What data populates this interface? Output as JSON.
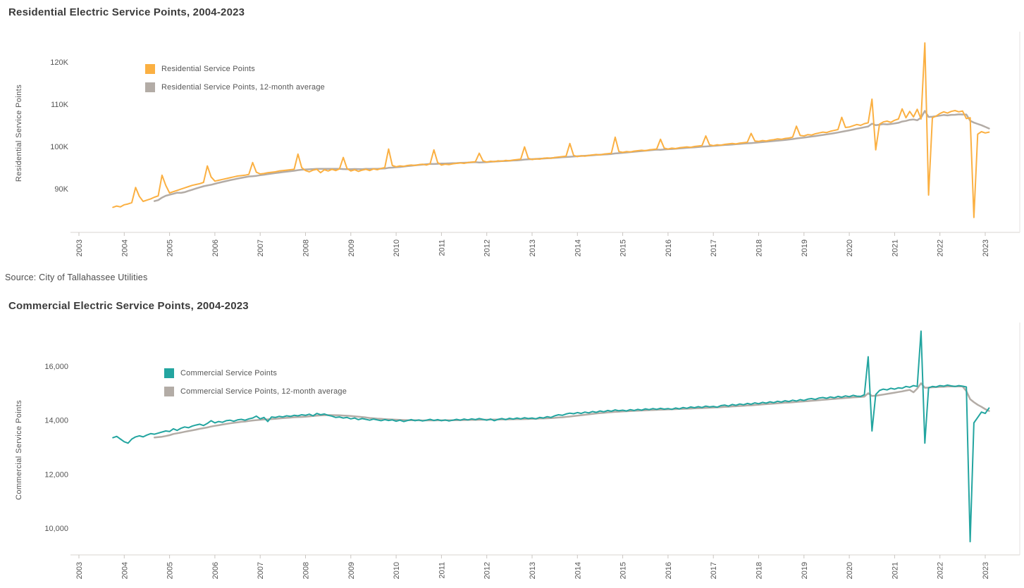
{
  "page": {
    "source_note": "Source: City of Tallahassee Utilities",
    "background": "#ffffff"
  },
  "chart_data": [
    {
      "type": "line",
      "id": "residential",
      "title": "Residential Electric Service Points, 2004-2023",
      "ylabel": "Residential Service Points",
      "legend": [
        {
          "label": "Residential Service Points",
          "color": "#FBB042"
        },
        {
          "label": "Residential Service Points, 12-month average",
          "color": "#B3ACA6"
        }
      ],
      "frequency": "monthly",
      "x_start": {
        "year": 2003,
        "month": 10
      },
      "x_tick_years": [
        2003,
        2004,
        2005,
        2006,
        2007,
        2008,
        2009,
        2010,
        2011,
        2012,
        2013,
        2014,
        2015,
        2016,
        2017,
        2018,
        2019,
        2020,
        2021,
        2022,
        2023
      ],
      "y_ticks": [
        {
          "value": 90000,
          "label": "90K"
        },
        {
          "value": 100000,
          "label": "100K"
        },
        {
          "value": 110000,
          "label": "110K"
        },
        {
          "value": 120000,
          "label": "120K"
        }
      ],
      "average_window": 12,
      "values": [
        85600,
        85900,
        85700,
        86200,
        86400,
        86700,
        90300,
        88200,
        87000,
        87300,
        87600,
        88000,
        88300,
        93200,
        90800,
        89000,
        89300,
        89600,
        89900,
        90200,
        90500,
        90800,
        91000,
        91200,
        91500,
        95400,
        92800,
        91800,
        92000,
        92200,
        92400,
        92600,
        92800,
        93000,
        93100,
        93200,
        93400,
        96200,
        93900,
        93500,
        93600,
        93800,
        93900,
        94000,
        94200,
        94300,
        94400,
        94500,
        94600,
        98200,
        95000,
        94300,
        94000,
        94400,
        94600,
        93800,
        94500,
        94200,
        94600,
        94300,
        94700,
        97400,
        94800,
        94200,
        94500,
        94100,
        94400,
        94600,
        94300,
        94700,
        94500,
        94800,
        95000,
        99400,
        95500,
        95200,
        95400,
        95300,
        95500,
        95600,
        95500,
        95700,
        95800,
        95600,
        95900,
        99200,
        96200,
        95600,
        95800,
        95700,
        95900,
        96000,
        96100,
        96000,
        96200,
        96300,
        96400,
        98400,
        96600,
        96300,
        96500,
        96400,
        96600,
        96500,
        96700,
        96600,
        96800,
        96900,
        97000,
        99900,
        97200,
        96900,
        97100,
        97000,
        97200,
        97300,
        97200,
        97400,
        97500,
        97600,
        97700,
        100700,
        97900,
        97600,
        97800,
        97700,
        97900,
        98000,
        98100,
        98000,
        98200,
        98300,
        98400,
        102200,
        98800,
        98600,
        98800,
        98700,
        98900,
        99000,
        99100,
        99000,
        99200,
        99300,
        99400,
        101700,
        99600,
        99400,
        99600,
        99500,
        99700,
        99800,
        99900,
        99800,
        100000,
        100100,
        100200,
        102500,
        100400,
        100200,
        100400,
        100300,
        100500,
        100600,
        100700,
        100600,
        100800,
        100900,
        101000,
        103100,
        101300,
        101200,
        101400,
        101300,
        101500,
        101600,
        101800,
        101700,
        101900,
        102000,
        102200,
        104800,
        102600,
        102500,
        102800,
        102700,
        103000,
        103200,
        103400,
        103300,
        103600,
        103800,
        104000,
        106900,
        104500,
        104600,
        104900,
        105200,
        105000,
        105400,
        105600,
        111200,
        99200,
        105300,
        105800,
        106000,
        105700,
        106200,
        106500,
        108900,
        106800,
        108300,
        107000,
        108800,
        106500,
        124500,
        88500,
        106800,
        107200,
        107800,
        108200,
        107900,
        108300,
        108500,
        108200,
        108400,
        106600,
        106800,
        83200,
        102900,
        103500,
        103200,
        103400
      ]
    },
    {
      "type": "line",
      "id": "commercial",
      "title": "Commercial Electric Service Points, 2004-2023",
      "ylabel": "Commercial Service Points",
      "legend": [
        {
          "label": "Commercial Service Points",
          "color": "#23A5A0"
        },
        {
          "label": "Commercial Service Points, 12-month average",
          "color": "#B3ACA6"
        }
      ],
      "frequency": "monthly",
      "x_start": {
        "year": 2003,
        "month": 10
      },
      "x_tick_years": [
        2003,
        2004,
        2005,
        2006,
        2007,
        2008,
        2009,
        2010,
        2011,
        2012,
        2013,
        2014,
        2015,
        2016,
        2017,
        2018,
        2019,
        2020,
        2021,
        2022,
        2023
      ],
      "y_ticks": [
        {
          "value": 10000,
          "label": "10,000"
        },
        {
          "value": 12000,
          "label": "12,000"
        },
        {
          "value": 14000,
          "label": "14,000"
        },
        {
          "value": 16000,
          "label": "16,000"
        }
      ],
      "average_window": 12,
      "values": [
        13350,
        13400,
        13300,
        13200,
        13150,
        13300,
        13380,
        13420,
        13380,
        13450,
        13500,
        13480,
        13520,
        13560,
        13600,
        13580,
        13680,
        13620,
        13700,
        13750,
        13720,
        13780,
        13820,
        13850,
        13800,
        13880,
        13980,
        13900,
        13950,
        13920,
        13980,
        14000,
        13960,
        14010,
        14030,
        14000,
        14050,
        14080,
        14150,
        14050,
        14100,
        13950,
        14120,
        14100,
        14140,
        14120,
        14160,
        14140,
        14180,
        14160,
        14200,
        14180,
        14220,
        14160,
        14250,
        14200,
        14230,
        14180,
        14150,
        14100,
        14120,
        14080,
        14100,
        14050,
        14080,
        14020,
        14060,
        14030,
        14000,
        14040,
        14010,
        13980,
        14020,
        13990,
        14010,
        13960,
        14000,
        13950,
        13990,
        14020,
        13980,
        14010,
        13970,
        14000,
        14030,
        13990,
        14020,
        13980,
        14010,
        13970,
        14000,
        14030,
        14000,
        14040,
        14010,
        14050,
        14020,
        14060,
        14030,
        14000,
        14040,
        13980,
        14030,
        14060,
        14020,
        14070,
        14040,
        14080,
        14050,
        14090,
        14060,
        14080,
        14050,
        14100,
        14080,
        14130,
        14100,
        14160,
        14200,
        14180,
        14230,
        14260,
        14240,
        14280,
        14250,
        14300,
        14270,
        14320,
        14290,
        14340,
        14310,
        14360,
        14330,
        14380,
        14350,
        14370,
        14340,
        14390,
        14360,
        14400,
        14370,
        14420,
        14390,
        14430,
        14400,
        14440,
        14410,
        14430,
        14400,
        14450,
        14420,
        14470,
        14440,
        14490,
        14460,
        14500,
        14470,
        14520,
        14490,
        14510,
        14480,
        14540,
        14560,
        14520,
        14580,
        14550,
        14600,
        14570,
        14620,
        14590,
        14640,
        14610,
        14660,
        14630,
        14680,
        14650,
        14700,
        14670,
        14720,
        14690,
        14740,
        14710,
        14760,
        14730,
        14780,
        14800,
        14770,
        14820,
        14840,
        14810,
        14860,
        14830,
        14880,
        14850,
        14900,
        14870,
        14920,
        14890,
        14880,
        14940,
        16350,
        13600,
        14950,
        15100,
        15150,
        15120,
        15180,
        15150,
        15200,
        15180,
        15250,
        15220,
        15280,
        15250,
        17300,
        13150,
        15200,
        15250,
        15230,
        15280,
        15260,
        15300,
        15270,
        15250,
        15280,
        15260,
        15230,
        9500,
        13900,
        14100,
        14300,
        14250,
        14450
      ]
    }
  ]
}
